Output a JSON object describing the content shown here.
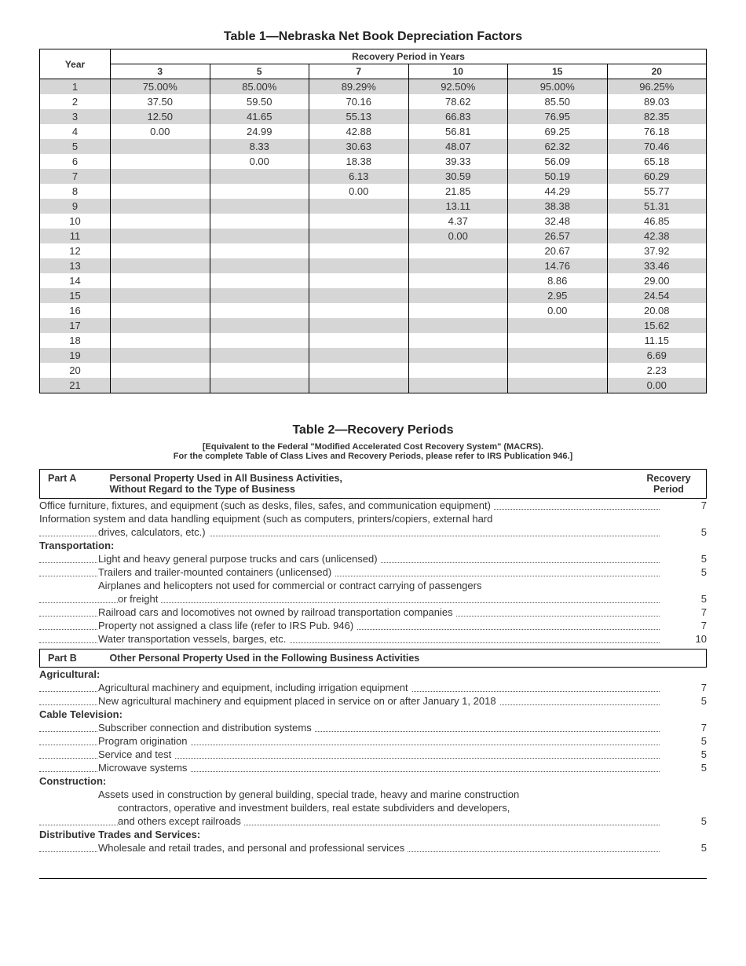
{
  "table1": {
    "title": "Table 1—Nebraska Net Book Depreciation Factors",
    "headerGroup": "Recovery Period in Years",
    "yearHeader": "Year",
    "cols": [
      "3",
      "5",
      "7",
      "10",
      "15",
      "20"
    ],
    "rows": [
      {
        "y": "1",
        "v": [
          "75.00%",
          "85.00%",
          "89.29%",
          "92.50%",
          "95.00%",
          "96.25%"
        ]
      },
      {
        "y": "2",
        "v": [
          "37.50",
          "59.50",
          "70.16",
          "78.62",
          "85.50",
          "89.03"
        ]
      },
      {
        "y": "3",
        "v": [
          "12.50",
          "41.65",
          "55.13",
          "66.83",
          "76.95",
          "82.35"
        ]
      },
      {
        "y": "4",
        "v": [
          "0.00",
          "24.99",
          "42.88",
          "56.81",
          "69.25",
          "76.18"
        ]
      },
      {
        "y": "5",
        "v": [
          "",
          "8.33",
          "30.63",
          "48.07",
          "62.32",
          "70.46"
        ]
      },
      {
        "y": "6",
        "v": [
          "",
          "0.00",
          "18.38",
          "39.33",
          "56.09",
          "65.18"
        ]
      },
      {
        "y": "7",
        "v": [
          "",
          "",
          "6.13",
          "30.59",
          "50.19",
          "60.29"
        ]
      },
      {
        "y": "8",
        "v": [
          "",
          "",
          "0.00",
          "21.85",
          "44.29",
          "55.77"
        ]
      },
      {
        "y": "9",
        "v": [
          "",
          "",
          "",
          "13.11",
          "38.38",
          "51.31"
        ]
      },
      {
        "y": "10",
        "v": [
          "",
          "",
          "",
          "4.37",
          "32.48",
          "46.85"
        ]
      },
      {
        "y": "11",
        "v": [
          "",
          "",
          "",
          "0.00",
          "26.57",
          "42.38"
        ]
      },
      {
        "y": "12",
        "v": [
          "",
          "",
          "",
          "",
          "20.67",
          "37.92"
        ]
      },
      {
        "y": "13",
        "v": [
          "",
          "",
          "",
          "",
          "14.76",
          "33.46"
        ]
      },
      {
        "y": "14",
        "v": [
          "",
          "",
          "",
          "",
          "8.86",
          "29.00"
        ]
      },
      {
        "y": "15",
        "v": [
          "",
          "",
          "",
          "",
          "2.95",
          "24.54"
        ]
      },
      {
        "y": "16",
        "v": [
          "",
          "",
          "",
          "",
          "0.00",
          "20.08"
        ]
      },
      {
        "y": "17",
        "v": [
          "",
          "",
          "",
          "",
          "",
          "15.62"
        ]
      },
      {
        "y": "18",
        "v": [
          "",
          "",
          "",
          "",
          "",
          "11.15"
        ]
      },
      {
        "y": "19",
        "v": [
          "",
          "",
          "",
          "",
          "",
          "6.69"
        ]
      },
      {
        "y": "20",
        "v": [
          "",
          "",
          "",
          "",
          "",
          "2.23"
        ]
      },
      {
        "y": "21",
        "v": [
          "",
          "",
          "",
          "",
          "",
          "0.00"
        ]
      }
    ]
  },
  "table2": {
    "title": "Table 2—Recovery Periods",
    "subtitle": "[Equivalent to the Federal \"Modified Accelerated Cost Recovery System\" (MACRS).\nFor the complete Table of Class Lives and Recovery Periods, please refer to IRS Publication 946.]",
    "partA": {
      "label": "Part A",
      "title": "Personal Property Used in All Business Activities,\nWithout Regard to the Type of Business",
      "recovHead": "Recovery\nPeriod"
    },
    "partB": {
      "label": "Part B",
      "title": "Other Personal Property Used in the Following Business Activities"
    },
    "items": [
      {
        "type": "item",
        "text": "Office furniture, fixtures, and equipment (such as desks, files, safes, and communication equipment)",
        "val": "7",
        "leader": true,
        "indent": 1
      },
      {
        "type": "item",
        "text": "Information system and data handling equipment (such as computers, printers/copiers, external hard",
        "val": "",
        "leader": false,
        "indent": 1
      },
      {
        "type": "item",
        "text": "drives, calculators, etc.)",
        "val": "5",
        "leader": true,
        "indent": 2
      },
      {
        "type": "cat",
        "text": "Transportation:"
      },
      {
        "type": "item",
        "text": "Light and heavy general purpose trucks and cars (unlicensed)",
        "val": "5",
        "leader": true,
        "indent": 2
      },
      {
        "type": "item",
        "text": "Trailers and trailer-mounted containers (unlicensed)",
        "val": "5",
        "leader": true,
        "indent": 2
      },
      {
        "type": "item",
        "text": "Airplanes and helicopters not used for commercial or contract carrying of passengers",
        "val": "",
        "leader": false,
        "indent": 2
      },
      {
        "type": "item",
        "text": "or freight",
        "val": "5",
        "leader": true,
        "indent": 2,
        "extraIndent": true
      },
      {
        "type": "item",
        "text": "Railroad cars and locomotives not owned by railroad transportation companies",
        "val": "7",
        "leader": true,
        "indent": 2
      },
      {
        "type": "item",
        "text": "Property not assigned a class life (refer to IRS Pub. 946)",
        "val": "7",
        "leader": true,
        "indent": 2
      },
      {
        "type": "item",
        "text": "Water transportation vessels, barges, etc.",
        "val": "10",
        "leader": true,
        "indent": 2
      }
    ],
    "itemsB": [
      {
        "type": "cat",
        "text": "Agricultural:"
      },
      {
        "type": "item",
        "text": "Agricultural machinery and equipment, including irrigation equipment",
        "val": "7",
        "leader": true,
        "indent": 2
      },
      {
        "type": "item",
        "text": "New agricultural machinery and equipment placed in service on or after January 1, 2018",
        "val": "5",
        "leader": true,
        "indent": 2
      },
      {
        "type": "cat",
        "text": "Cable Television:"
      },
      {
        "type": "item",
        "text": "Subscriber connection and distribution systems",
        "val": "7",
        "leader": true,
        "indent": 2
      },
      {
        "type": "item",
        "text": "Program origination",
        "val": "5",
        "leader": true,
        "indent": 2
      },
      {
        "type": "item",
        "text": "Service and test",
        "val": "5",
        "leader": true,
        "indent": 2
      },
      {
        "type": "item",
        "text": "Microwave systems",
        "val": "5",
        "leader": true,
        "indent": 2
      },
      {
        "type": "cat",
        "text": "Construction:"
      },
      {
        "type": "item",
        "text": "Assets used in construction by general building, special trade, heavy and marine construction",
        "val": "",
        "leader": false,
        "indent": 2
      },
      {
        "type": "item",
        "text": "contractors, operative and investment builders, real estate subdividers and developers,",
        "val": "",
        "leader": false,
        "indent": 2,
        "extraIndent": true
      },
      {
        "type": "item",
        "text": "and others except railroads",
        "val": "5",
        "leader": true,
        "indent": 2,
        "extraIndent": true
      },
      {
        "type": "cat",
        "text": "Distributive Trades and Services:"
      },
      {
        "type": "item",
        "text": "Wholesale and retail trades, and personal and professional services",
        "val": "5",
        "leader": true,
        "indent": 2
      }
    ]
  }
}
